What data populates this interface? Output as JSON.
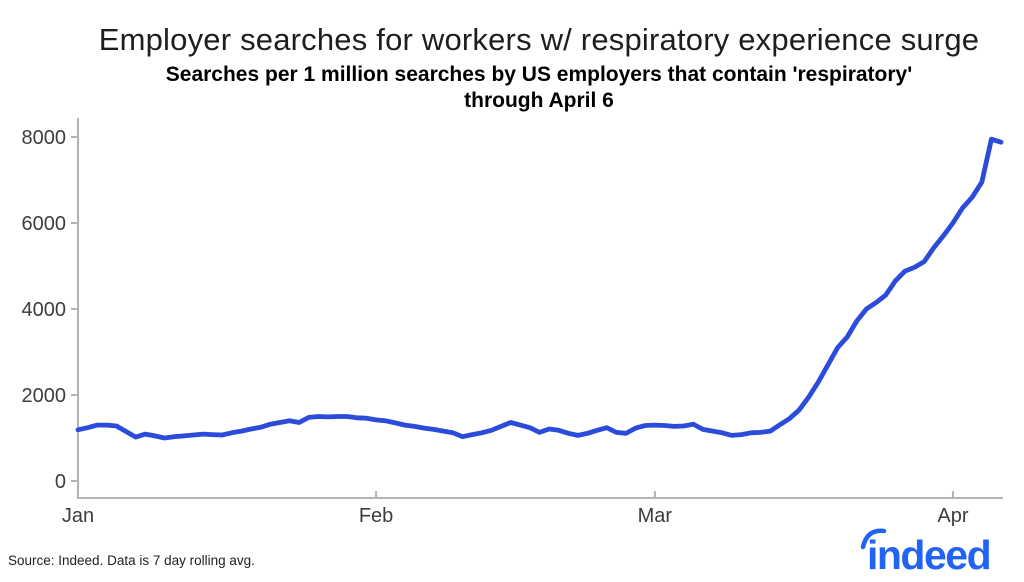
{
  "header": {
    "title": "Employer searches for workers w/ respiratory experience surge",
    "subtitle_line1": "Searches per 1 million searches by US employers that contain 'respiratory'",
    "subtitle_line2": "through April 6"
  },
  "footer": {
    "source_note": "Source: Indeed. Data is 7 day rolling avg."
  },
  "branding": {
    "logo_text": "indeed",
    "logo_color": "#2164f3"
  },
  "colors": {
    "line": "#2b4bdb",
    "axis": "#b3b3b3",
    "tick_text": "#3d3d3d"
  },
  "chart_data": {
    "type": "line",
    "title": "Employer searches for workers w/ respiratory experience surge",
    "subtitle": "Searches per 1 million searches by US employers that contain 'respiratory' through April 6",
    "xlabel": "",
    "ylabel": "",
    "grid": false,
    "legend": "none",
    "ylim": [
      0,
      8500
    ],
    "y_ticks": [
      0,
      2000,
      4000,
      6000,
      8000
    ],
    "x_tick_labels": [
      "Jan",
      "Feb",
      "Mar",
      "Apr"
    ],
    "x_tick_indices": [
      0,
      31,
      60,
      91
    ],
    "x_description": "Daily values, Jan 1 through Apr 6 (7 day rolling avg)",
    "n_points": 97,
    "line_color": "#2b4bdb",
    "values": [
      1190,
      1240,
      1300,
      1300,
      1280,
      1150,
      1020,
      1090,
      1050,
      1000,
      1030,
      1050,
      1070,
      1090,
      1080,
      1070,
      1120,
      1160,
      1210,
      1250,
      1320,
      1360,
      1400,
      1360,
      1480,
      1500,
      1490,
      1500,
      1500,
      1470,
      1460,
      1420,
      1400,
      1350,
      1300,
      1270,
      1230,
      1200,
      1160,
      1120,
      1030,
      1080,
      1120,
      1180,
      1270,
      1360,
      1300,
      1240,
      1130,
      1210,
      1180,
      1110,
      1060,
      1110,
      1180,
      1240,
      1130,
      1110,
      1230,
      1290,
      1300,
      1290,
      1270,
      1280,
      1320,
      1200,
      1160,
      1120,
      1060,
      1080,
      1120,
      1130,
      1160,
      1310,
      1450,
      1650,
      1950,
      2300,
      2700,
      3100,
      3350,
      3720,
      4000,
      4150,
      4320,
      4650,
      4880,
      4970,
      5100,
      5420,
      5700,
      6000,
      6350,
      6600,
      6950,
      7950,
      7880
    ]
  }
}
